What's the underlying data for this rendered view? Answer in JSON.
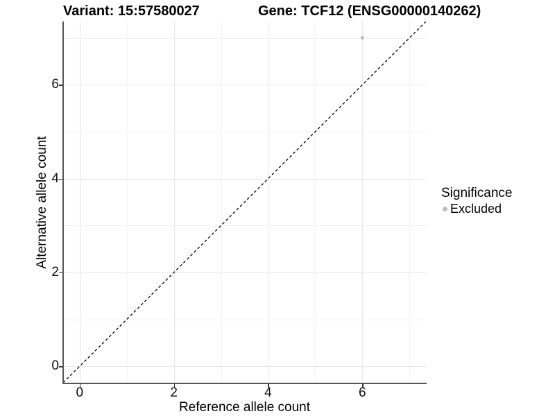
{
  "title": {
    "variant": "Variant: 15:57580027",
    "gene": "Gene: TCF12 (ENSG00000140262)"
  },
  "chart_data": {
    "type": "scatter",
    "title_left": "Variant: 15:57580027",
    "title_right": "Gene: TCF12 (ENSG00000140262)",
    "xlabel": "Reference allele count",
    "ylabel": "Alternative allele count",
    "xlim": [
      -0.35,
      7.35
    ],
    "ylim": [
      -0.35,
      7.35
    ],
    "x_major_ticks": [
      0,
      2,
      4,
      6
    ],
    "y_major_ticks": [
      0,
      2,
      4,
      6
    ],
    "x_minor_gridlines": [
      1,
      3,
      5,
      7
    ],
    "y_minor_gridlines": [
      1,
      3,
      5,
      7
    ],
    "grid": "major and minor gridlines on white panel",
    "identity_line": {
      "style": "dashed",
      "equation": "y = x",
      "from": [
        -0.35,
        -0.35
      ],
      "to": [
        7.35,
        7.35
      ]
    },
    "series": [
      {
        "name": "Excluded",
        "color": "#bdbdbd",
        "points": [
          [
            6,
            7
          ]
        ]
      }
    ],
    "legend": {
      "position": "right",
      "title": "Significance",
      "entries": [
        {
          "label": "Excluded",
          "color": "#bdbdbd"
        }
      ]
    }
  },
  "colors": {
    "background": "#ffffff",
    "major_grid": "#e6e6e6",
    "minor_grid": "#f2f2f2",
    "axis_line": "#565656",
    "tick_mark": "#333333",
    "tick_text": "#111111",
    "identity_line": "#000000",
    "point": "#bdbdbd"
  }
}
